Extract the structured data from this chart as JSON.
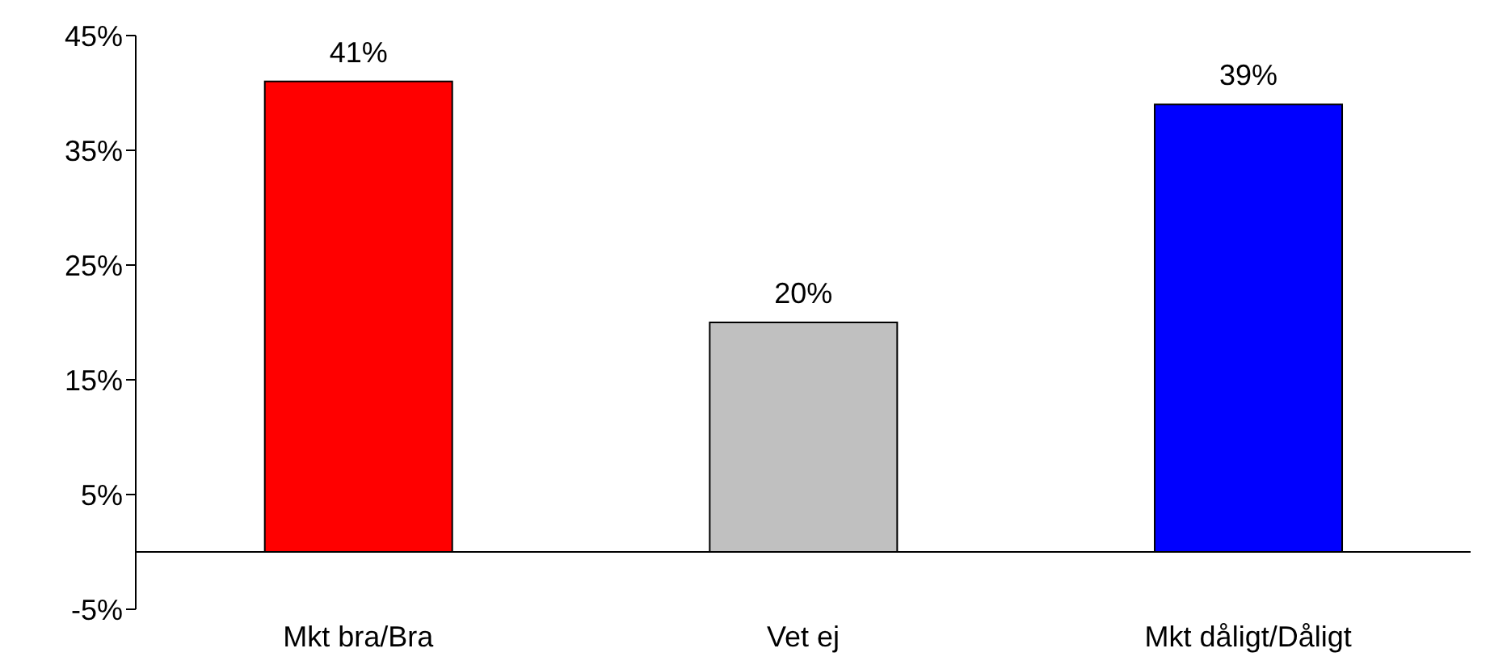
{
  "chart_data": {
    "type": "bar",
    "categories": [
      "Mkt bra/Bra",
      "Vet ej",
      "Mkt dåligt/Dåligt"
    ],
    "values": [
      41,
      20,
      39
    ],
    "colors": [
      "#ff0000",
      "#c0c0c0",
      "#0000ff"
    ],
    "value_labels": [
      "41%",
      "20%",
      "39%"
    ],
    "ylim": [
      -5,
      45
    ],
    "yticks": [
      {
        "value": -5,
        "label": "-5%"
      },
      {
        "value": 5,
        "label": "5%"
      },
      {
        "value": 15,
        "label": "15%"
      },
      {
        "value": 25,
        "label": "25%"
      },
      {
        "value": 35,
        "label": "35%"
      },
      {
        "value": 45,
        "label": "45%"
      }
    ],
    "grid": false,
    "legend": false
  }
}
